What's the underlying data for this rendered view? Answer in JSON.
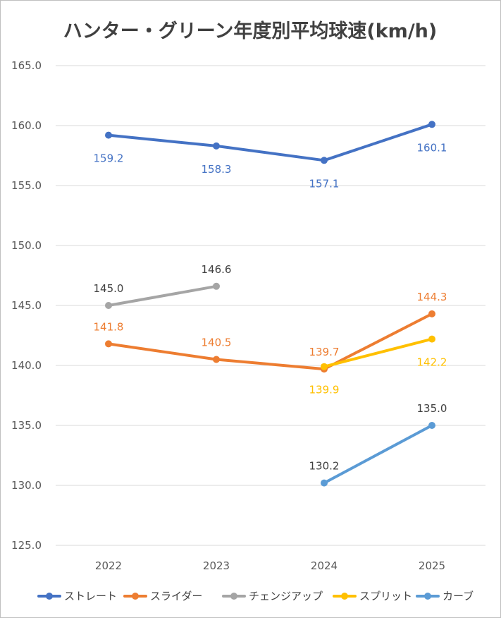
{
  "chart_data": {
    "type": "line",
    "title": "ハンター・グリーン年度別平均球速(km/h)",
    "xlabel": "",
    "ylabel": "",
    "ylim": [
      125.0,
      165.0
    ],
    "yticks": [
      "125.0",
      "130.0",
      "135.0",
      "140.0",
      "145.0",
      "150.0",
      "155.0",
      "160.0",
      "165.0"
    ],
    "categories": [
      "2022",
      "2023",
      "2024",
      "2025"
    ],
    "grid": true,
    "legend_position": "bottom",
    "series": [
      {
        "name": "ストレート",
        "color": "#4472C4",
        "values": [
          159.2,
          158.3,
          157.1,
          160.1
        ],
        "labels": [
          "159.2",
          "158.3",
          "157.1",
          "160.1"
        ],
        "label_pos": [
          "below",
          "below",
          "below",
          "below"
        ],
        "label_color": "#4472C4"
      },
      {
        "name": "スライダー",
        "color": "#ED7D31",
        "values": [
          141.8,
          140.5,
          139.7,
          144.3
        ],
        "labels": [
          "141.8",
          "140.5",
          "139.7",
          "144.3"
        ],
        "label_pos": [
          "above",
          "above",
          "above",
          "above"
        ],
        "label_color": "#ED7D31"
      },
      {
        "name": "チェンジアップ",
        "color": "#A5A5A5",
        "values": [
          145.0,
          146.6,
          null,
          null
        ],
        "labels": [
          "145.0",
          "146.6",
          null,
          null
        ],
        "label_pos": [
          "above",
          "above",
          "above",
          "above"
        ],
        "label_color": "#404040"
      },
      {
        "name": "スプリット",
        "color": "#FFC000",
        "values": [
          null,
          null,
          139.9,
          142.2
        ],
        "labels": [
          null,
          null,
          "139.9",
          "142.2"
        ],
        "label_pos": [
          "below",
          "below",
          "below",
          "below"
        ],
        "label_color": "#FFC000"
      },
      {
        "name": "カーブ",
        "color": "#5B9BD5",
        "values": [
          null,
          null,
          130.2,
          135.0
        ],
        "labels": [
          null,
          null,
          "130.2",
          "135.0"
        ],
        "label_pos": [
          "above",
          "above",
          "above",
          "above"
        ],
        "label_color": "#404040"
      }
    ]
  }
}
